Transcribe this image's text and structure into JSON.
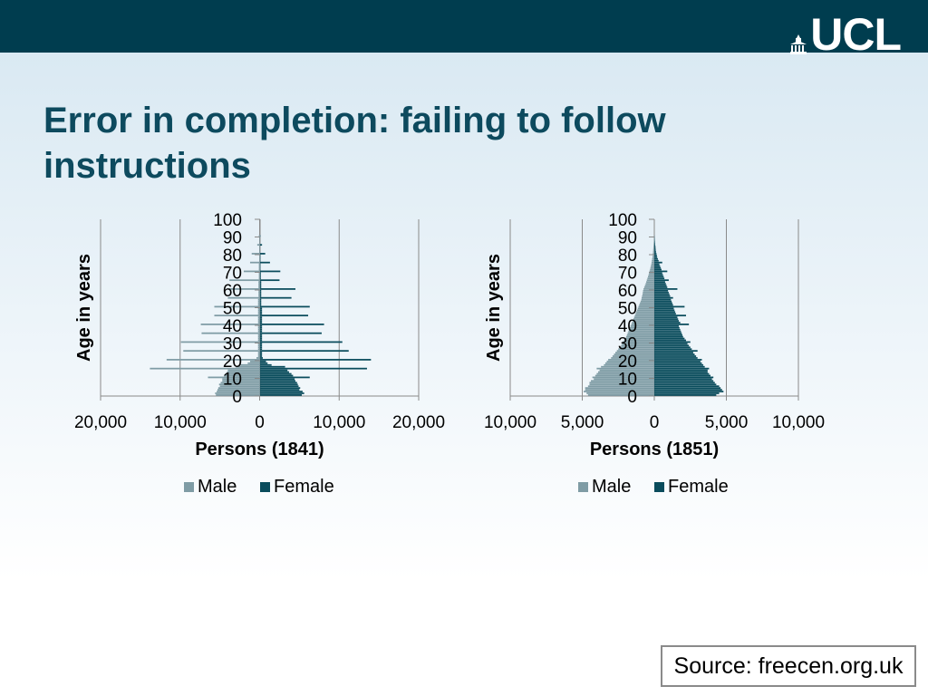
{
  "header": {
    "logo_text": "UCL"
  },
  "title": "Error in completion: failing to follow instructions",
  "source": "Source: freecen.org.uk",
  "colors": {
    "male": "#7f9ca5",
    "female": "#0a4c5c",
    "header": "#003d4f",
    "title": "#0d4a5e"
  },
  "chart_data": [
    {
      "type": "bar",
      "orientation": "horizontal",
      "subtype": "population-pyramid",
      "xlabel": "Persons (1841)",
      "ylabel": "Age in years",
      "xlim": [
        -20000,
        20000
      ],
      "x_ticks": [
        -20000,
        -10000,
        0,
        10000,
        20000
      ],
      "x_tick_labels": [
        "20,000",
        "10,000",
        "0",
        "10,000",
        "20,000"
      ],
      "ylim": [
        0,
        100
      ],
      "y_tick_labels": [
        "0",
        "10",
        "20",
        "30",
        "40",
        "50",
        "60",
        "70",
        "80",
        "90",
        "100"
      ],
      "grid": true,
      "legend": {
        "position": "bottom",
        "entries": [
          "Male",
          "Female"
        ]
      },
      "ages": [
        0,
        1,
        2,
        3,
        4,
        5,
        6,
        7,
        8,
        9,
        10,
        11,
        12,
        13,
        14,
        15,
        16,
        17,
        18,
        19,
        20,
        21,
        22,
        23,
        24,
        25,
        26,
        27,
        28,
        29,
        30,
        31,
        32,
        33,
        34,
        35,
        36,
        37,
        38,
        39,
        40,
        41,
        42,
        43,
        44,
        45,
        46,
        47,
        48,
        49,
        50,
        51,
        52,
        53,
        54,
        55,
        56,
        57,
        58,
        59,
        60,
        61,
        62,
        63,
        64,
        65,
        66,
        67,
        68,
        69,
        70,
        71,
        72,
        73,
        74,
        75,
        76,
        77,
        78,
        79,
        80,
        81,
        82,
        83,
        84,
        85,
        86,
        87,
        88,
        89,
        90
      ],
      "series": [
        {
          "name": "Male",
          "values": [
            5500,
            5600,
            5400,
            5300,
            5200,
            5000,
            5100,
            4900,
            4700,
            4700,
            6500,
            4500,
            4300,
            4100,
            4000,
            13800,
            3000,
            2400,
            1500,
            1200,
            11700,
            400,
            200,
            200,
            200,
            9600,
            200,
            200,
            200,
            200,
            9900,
            200,
            200,
            200,
            200,
            7300,
            200,
            200,
            200,
            200,
            7400,
            200,
            200,
            200,
            200,
            5700,
            200,
            200,
            200,
            200,
            5700,
            200,
            200,
            200,
            200,
            4000,
            150,
            150,
            150,
            150,
            3800,
            150,
            150,
            150,
            150,
            3800,
            100,
            100,
            100,
            100,
            2000,
            100,
            100,
            100,
            100,
            1200,
            50,
            50,
            50,
            50,
            1000,
            50,
            30,
            30,
            30,
            300,
            20,
            20,
            20,
            20,
            100
          ]
        },
        {
          "name": "Female",
          "values": [
            5300,
            5600,
            5400,
            5000,
            5100,
            4900,
            4800,
            4700,
            4500,
            4400,
            6300,
            4200,
            4000,
            3700,
            3500,
            13500,
            3200,
            1500,
            1000,
            800,
            14000,
            400,
            300,
            300,
            300,
            11200,
            300,
            300,
            300,
            300,
            10400,
            300,
            300,
            300,
            300,
            7800,
            300,
            300,
            300,
            300,
            8100,
            300,
            300,
            300,
            300,
            6100,
            300,
            300,
            300,
            300,
            6300,
            200,
            200,
            200,
            200,
            4000,
            200,
            200,
            200,
            200,
            4500,
            200,
            200,
            200,
            200,
            2500,
            150,
            150,
            150,
            150,
            2600,
            100,
            100,
            100,
            100,
            1300,
            100,
            100,
            100,
            100,
            700,
            50,
            50,
            50,
            50,
            300,
            30,
            30,
            30,
            30,
            100
          ]
        }
      ]
    },
    {
      "type": "bar",
      "orientation": "horizontal",
      "subtype": "population-pyramid",
      "xlabel": "Persons (1851)",
      "ylabel": "Age in years",
      "xlim": [
        -10000,
        10000
      ],
      "x_ticks": [
        -10000,
        -5000,
        0,
        5000,
        10000
      ],
      "x_tick_labels": [
        "10,000",
        "5,000",
        "0",
        "5,000",
        "10,000"
      ],
      "ylim": [
        0,
        100
      ],
      "y_tick_labels": [
        "0",
        "10",
        "20",
        "30",
        "40",
        "50",
        "60",
        "70",
        "80",
        "90",
        "100"
      ],
      "grid": true,
      "legend": {
        "position": "bottom",
        "entries": [
          "Male",
          "Female"
        ]
      },
      "ages": [
        0,
        1,
        2,
        3,
        4,
        5,
        6,
        7,
        8,
        9,
        10,
        11,
        12,
        13,
        14,
        15,
        16,
        17,
        18,
        19,
        20,
        21,
        22,
        23,
        24,
        25,
        26,
        27,
        28,
        29,
        30,
        31,
        32,
        33,
        34,
        35,
        36,
        37,
        38,
        39,
        40,
        41,
        42,
        43,
        44,
        45,
        46,
        47,
        48,
        49,
        50,
        51,
        52,
        53,
        54,
        55,
        56,
        57,
        58,
        59,
        60,
        61,
        62,
        63,
        64,
        65,
        66,
        67,
        68,
        69,
        70,
        71,
        72,
        73,
        74,
        75,
        76,
        77,
        78,
        79,
        80,
        81,
        82,
        83,
        84,
        85,
        86,
        87,
        88,
        89,
        90
      ],
      "series": [
        {
          "name": "Male",
          "values": [
            4600,
            4700,
            4900,
            4800,
            4800,
            4600,
            4500,
            4500,
            4400,
            4200,
            4300,
            4100,
            4000,
            3900,
            3800,
            4000,
            3700,
            3500,
            3400,
            3300,
            3200,
            3000,
            2900,
            2800,
            2700,
            2600,
            2500,
            2400,
            2300,
            2250,
            2200,
            2100,
            2000,
            1950,
            1900,
            1850,
            1800,
            1750,
            1700,
            1650,
            1600,
            1550,
            1500,
            1450,
            1400,
            1350,
            1300,
            1250,
            1200,
            1150,
            1100,
            1050,
            1000,
            950,
            900,
            880,
            850,
            820,
            800,
            780,
            750,
            700,
            650,
            600,
            560,
            520,
            480,
            440,
            400,
            370,
            340,
            300,
            270,
            240,
            210,
            190,
            170,
            150,
            130,
            110,
            100,
            90,
            80,
            70,
            60,
            50,
            40,
            30,
            20,
            10,
            5
          ]
        },
        {
          "name": "Female",
          "values": [
            4300,
            4500,
            4800,
            4700,
            4600,
            4500,
            4300,
            4200,
            4100,
            4000,
            4100,
            3900,
            3800,
            3700,
            3700,
            3800,
            3500,
            3400,
            3300,
            3200,
            3300,
            3000,
            2900,
            2800,
            2700,
            3000,
            2600,
            2500,
            2400,
            2300,
            2500,
            2200,
            2100,
            2000,
            1950,
            1900,
            1850,
            1800,
            1750,
            1700,
            2400,
            1800,
            1700,
            1650,
            1600,
            2200,
            1500,
            1450,
            1400,
            1350,
            2100,
            1300,
            1250,
            1200,
            1150,
            1300,
            1100,
            1050,
            1000,
            950,
            1600,
            900,
            850,
            800,
            750,
            1000,
            700,
            650,
            600,
            550,
            900,
            500,
            450,
            400,
            350,
            550,
            300,
            250,
            200,
            180,
            150,
            120,
            100,
            90,
            80,
            60,
            50,
            40,
            30,
            20,
            10
          ]
        }
      ]
    }
  ]
}
